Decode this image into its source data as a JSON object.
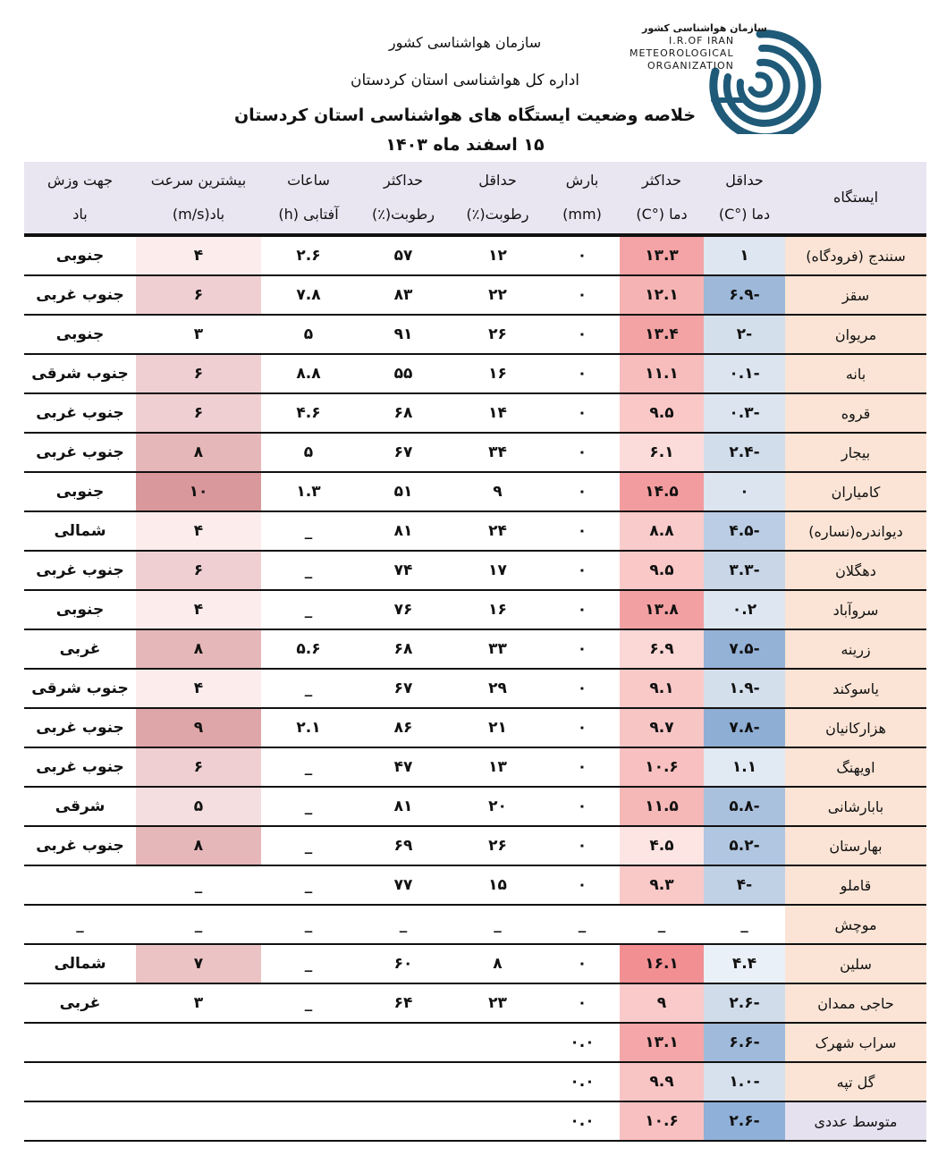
{
  "header": {
    "org_name": "سازمان هواشناسی کشور",
    "office": "اداره کل هواشناسی استان کردستان",
    "title": "خلاصه وضعیت ایستگاه های هواشناسی استان کردستان",
    "date": "۱۵ اسفند ماه ۱۴۰۳"
  },
  "logo": {
    "fa": "سازمان هواشناسی کشور",
    "en1": "I.R.OF IRAN",
    "en2": "METEOROLOGICAL",
    "en3": "ORGANIZATION",
    "color": "#1f5a78"
  },
  "columns": [
    {
      "l1": "ایستگاه",
      "l2": ""
    },
    {
      "l1": "حداقل",
      "l2": "دما (°C)"
    },
    {
      "l1": "حداکثر",
      "l2": "دما (°C)"
    },
    {
      "l1": "بارش",
      "l2": "(mm)"
    },
    {
      "l1": "حداقل",
      "l2": "رطوبت(٪)"
    },
    {
      "l1": "حداکثر",
      "l2": "رطوبت(٪)"
    },
    {
      "l1": "ساعات",
      "l2": "آفتابی (h)"
    },
    {
      "l1": "بیشترین سرعت",
      "l2": "باد(m/s)"
    },
    {
      "l1": "جهت وزش",
      "l2": "باد"
    }
  ],
  "rows": [
    {
      "station": "سنندج (فرودگاه)",
      "tmin": "۱",
      "tmax": "۱۳.۳",
      "rain": "۰",
      "rhmin": "۱۲",
      "rhmax": "۵۷",
      "sun": "۲.۶",
      "wind": "۴",
      "dir": "جنوبی",
      "tmin_c": "#dde6f1",
      "tmax_c": "#f4a4a6",
      "wind_c": "#fcecec"
    },
    {
      "station": "سقز",
      "tmin": "-۶.۹",
      "tmax": "۱۲.۱",
      "rain": "۰",
      "rhmin": "۲۲",
      "rhmax": "۸۳",
      "sun": "۷.۸",
      "wind": "۶",
      "dir": "جنوب غربی",
      "tmin_c": "#9db8d9",
      "tmax_c": "#f6b3b3",
      "wind_c": "#efcfd1"
    },
    {
      "station": "مریوان",
      "tmin": "-۲",
      "tmax": "۱۳.۴",
      "rain": "۰",
      "rhmin": "۲۶",
      "rhmax": "۹۱",
      "sun": "۵",
      "wind": "۳",
      "dir": "جنوبی",
      "tmin_c": "#d4dfec",
      "tmax_c": "#f4a3a5",
      "wind_c": "#ffffff"
    },
    {
      "station": "بانه",
      "tmin": "-۰.۱",
      "tmax": "۱۱.۱",
      "rain": "۰",
      "rhmin": "۱۶",
      "rhmax": "۵۵",
      "sun": "۸.۸",
      "wind": "۶",
      "dir": "جنوب شرقی",
      "tmin_c": "#dbe4ef",
      "tmax_c": "#f7bcbc",
      "wind_c": "#efcfd1"
    },
    {
      "station": "قروه",
      "tmin": "-۰.۳",
      "tmax": "۹.۵",
      "rain": "۰",
      "rhmin": "۱۴",
      "rhmax": "۶۸",
      "sun": "۴.۶",
      "wind": "۶",
      "dir": "جنوب غربی",
      "tmin_c": "#dbe4ef",
      "tmax_c": "#f9c8c7",
      "wind_c": "#efcfd1"
    },
    {
      "station": "بیجار",
      "tmin": "-۲.۴",
      "tmax": "۶.۱",
      "rain": "۰",
      "rhmin": "۳۴",
      "rhmax": "۶۷",
      "sun": "۵",
      "wind": "۸",
      "dir": "جنوب غربی",
      "tmin_c": "#d2ddeb",
      "tmax_c": "#fcdcdb",
      "wind_c": "#e6b7b9"
    },
    {
      "station": "کامیاران",
      "tmin": "۰",
      "tmax": "۱۴.۵",
      "rain": "۰",
      "rhmin": "۹",
      "rhmax": "۵۱",
      "sun": "۱.۳",
      "wind": "۱۰",
      "dir": "جنوبی",
      "tmin_c": "#dbe4ef",
      "tmax_c": "#f39c9f",
      "wind_c": "#d9989b"
    },
    {
      "station": "دیواندره(نساره)",
      "tmin": "-۴.۵",
      "tmax": "۸.۸",
      "rain": "۰",
      "rhmin": "۲۴",
      "rhmax": "۸۱",
      "sun": "_",
      "wind": "۴",
      "dir": "شمالی",
      "tmin_c": "#bacde4",
      "tmax_c": "#f9cbca",
      "wind_c": "#fcecec"
    },
    {
      "station": "دهگلان",
      "tmin": "-۳.۳",
      "tmax": "۹.۵",
      "rain": "۰",
      "rhmin": "۱۷",
      "rhmax": "۷۴",
      "sun": "_",
      "wind": "۶",
      "dir": "جنوب غربی",
      "tmin_c": "#c8d6e8",
      "tmax_c": "#f9c8c7",
      "wind_c": "#efcfd1"
    },
    {
      "station": "سروآباد",
      "tmin": "۰.۲",
      "tmax": "۱۳.۸",
      "rain": "۰",
      "rhmin": "۱۶",
      "rhmax": "۷۶",
      "sun": "_",
      "wind": "۴",
      "dir": "جنوبی",
      "tmin_c": "#dde6f1",
      "tmax_c": "#f3a0a3",
      "wind_c": "#fcecec"
    },
    {
      "station": "زرینه",
      "tmin": "-۷.۵",
      "tmax": "۶.۹",
      "rain": "۰",
      "rhmin": "۳۳",
      "rhmax": "۶۸",
      "sun": "۵.۶",
      "wind": "۸",
      "dir": "غربی",
      "tmin_c": "#94b1d6",
      "tmax_c": "#fbd7d6",
      "wind_c": "#e6b7b9"
    },
    {
      "station": "یاسوکند",
      "tmin": "-۱.۹",
      "tmax": "۹.۱",
      "rain": "۰",
      "rhmin": "۲۹",
      "rhmax": "۶۷",
      "sun": "_",
      "wind": "۴",
      "dir": "جنوب شرقی",
      "tmin_c": "#d4dfec",
      "tmax_c": "#f9c9c8",
      "wind_c": "#fcecec"
    },
    {
      "station": "هزارکانیان",
      "tmin": "-۷.۸",
      "tmax": "۹.۷",
      "rain": "۰",
      "rhmin": "۲۱",
      "rhmax": "۸۶",
      "sun": "۲.۱",
      "wind": "۹",
      "dir": "جنوب غربی",
      "tmin_c": "#8faed4",
      "tmax_c": "#f8c5c5",
      "wind_c": "#dfa6a9"
    },
    {
      "station": "اویهنگ",
      "tmin": "۱.۱",
      "tmax": "۱۰.۶",
      "rain": "۰",
      "rhmin": "۱۳",
      "rhmax": "۴۷",
      "sun": "_",
      "wind": "۶",
      "dir": "جنوب غربی",
      "tmin_c": "#e1e9f3",
      "tmax_c": "#f8c0c0",
      "wind_c": "#efcfd1"
    },
    {
      "station": "بابارشانی",
      "tmin": "-۵.۸",
      "tmax": "۱۱.۵",
      "rain": "۰",
      "rhmin": "۲۰",
      "rhmax": "۸۱",
      "sun": "_",
      "wind": "۵",
      "dir": "شرقی",
      "tmin_c": "#aac1de",
      "tmax_c": "#f6b7b7",
      "wind_c": "#f5dedf"
    },
    {
      "station": "بهارستان",
      "tmin": "-۵.۲",
      "tmax": "۴.۵",
      "rain": "۰",
      "rhmin": "۲۶",
      "rhmax": "۶۹",
      "sun": "_",
      "wind": "۸",
      "dir": "جنوب غربی",
      "tmin_c": "#b1c6e0",
      "tmax_c": "#fde5e4",
      "wind_c": "#e6b7b9"
    },
    {
      "station": "قاملو",
      "tmin": "-۴",
      "tmax": "۹.۳",
      "rain": "۰",
      "rhmin": "۱۵",
      "rhmax": "۷۷",
      "sun": "_",
      "wind": "_",
      "dir": "",
      "tmin_c": "#c0d1e6",
      "tmax_c": "#f9c9c8",
      "wind_c": "#ffffff"
    },
    {
      "station": "موچش",
      "tmin": "_",
      "tmax": "_",
      "rain": "_",
      "rhmin": "_",
      "rhmax": "_",
      "sun": "_",
      "wind": "_",
      "dir": "_",
      "tmin_c": "#ffffff",
      "tmax_c": "#ffffff",
      "wind_c": "#ffffff"
    },
    {
      "station": "سلین",
      "tmin": "۴.۴",
      "tmax": "۱۶.۱",
      "rain": "۰",
      "rhmin": "۸",
      "rhmax": "۶۰",
      "sun": "_",
      "wind": "۷",
      "dir": "شمالی",
      "tmin_c": "#eaf0f7",
      "tmax_c": "#f18f93",
      "wind_c": "#ebc3c5"
    },
    {
      "station": "حاجی ممدان",
      "tmin": "-۲.۶",
      "tmax": "۹",
      "rain": "۰",
      "rhmin": "۲۳",
      "rhmax": "۶۴",
      "sun": "_",
      "wind": "۳",
      "dir": "غربی",
      "tmin_c": "#d0dcea",
      "tmax_c": "#f9cac9",
      "wind_c": "#ffffff"
    },
    {
      "station": "سراب شهرک",
      "tmin": "-۶.۶",
      "tmax": "۱۳.۱",
      "rain": "۰.۰",
      "rhmin": "",
      "rhmax": "",
      "sun": "",
      "wind": "",
      "dir": "",
      "tmin_c": "#a0badb",
      "tmax_c": "#f4a6a8",
      "wind_c": "#ffffff"
    },
    {
      "station": "گل تپه",
      "tmin": "-۱.۰",
      "tmax": "۹.۹",
      "rain": "۰.۰",
      "rhmin": "",
      "rhmax": "",
      "sun": "",
      "wind": "",
      "dir": "",
      "tmin_c": "#d7e1ed",
      "tmax_c": "#f8c4c4",
      "wind_c": "#ffffff"
    },
    {
      "station": "متوسط عددی",
      "tmin": "-۲.۶",
      "tmax": "۱۰.۶",
      "rain": "۰.۰",
      "rhmin": "",
      "rhmax": "",
      "sun": "",
      "wind": "",
      "dir": "",
      "tmin_c": "#8fb0d8",
      "tmax_c": "#f8c0c0",
      "wind_c": "#ffffff",
      "avg": true
    }
  ]
}
